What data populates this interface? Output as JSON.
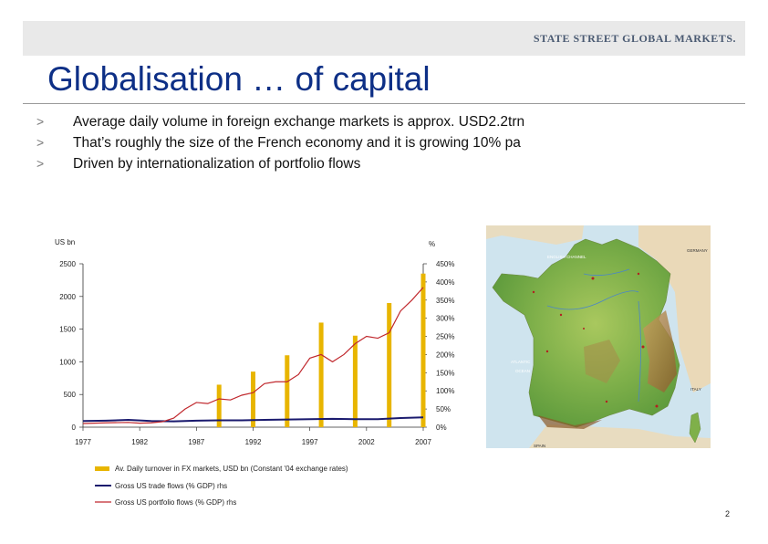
{
  "brand": "STATE STREET GLOBAL MARKETS.",
  "title": "Globalisation … of capital",
  "bullets": [
    "Average daily volume in foreign exchange markets is approx. USD2.2trn",
    "That’s roughly the size of the French economy and it is growing 10% pa",
    "Driven by internationalization of portfolio flows"
  ],
  "bullet_marker": ">",
  "page_number": "2",
  "map": {
    "labels": [
      "ENGLISH CHANNEL",
      "GERMANY",
      "ATLANTIC",
      "OCEAN",
      "ITALY",
      "SPAIN"
    ]
  },
  "chart_data": {
    "type": "bar",
    "title": "",
    "ylabel_left": "US bn",
    "ylabel_right": "%",
    "ylim_left": [
      0,
      2500
    ],
    "ylim_right": [
      0,
      450
    ],
    "left_ticks": [
      "2500",
      "2000",
      "1500",
      "1000",
      "500",
      "0"
    ],
    "right_ticks": [
      "450%",
      "400%",
      "350%",
      "300%",
      "250%",
      "200%",
      "150%",
      "100%",
      "50%",
      "0%"
    ],
    "x_ticks": [
      "1977",
      "1982",
      "1987",
      "1992",
      "1997",
      "2002",
      "2007"
    ],
    "x_range": [
      1977,
      2007
    ],
    "bars": {
      "name": "Av. Daily turnover in FX markets, USD bn (Constant '04 exchange rates)",
      "color": "#e8b500",
      "x": [
        1989,
        1992,
        1995,
        1998,
        2001,
        2004,
        2007
      ],
      "values": [
        650,
        850,
        1100,
        1600,
        1400,
        1900,
        2350
      ]
    },
    "lines": [
      {
        "name": "Gross US trade flows (% GDP) rhs",
        "color": "#1a1a6e",
        "axis": "right",
        "x": [
          1977,
          1979,
          1981,
          1983,
          1985,
          1987,
          1989,
          1991,
          1993,
          1995,
          1997,
          1999,
          2001,
          2003,
          2005,
          2007
        ],
        "values": [
          17,
          18,
          20,
          17,
          16,
          18,
          19,
          19,
          20,
          21,
          22,
          23,
          22,
          22,
          25,
          27
        ]
      },
      {
        "name": "Gross US portfolio flows (% GDP) rhs",
        "color": "#c0282d",
        "axis": "right",
        "x": [
          1977,
          1979,
          1981,
          1982,
          1983,
          1984,
          1985,
          1986,
          1987,
          1988,
          1989,
          1990,
          1991,
          1992,
          1993,
          1994,
          1995,
          1996,
          1997,
          1998,
          1999,
          2000,
          2001,
          2002,
          2003,
          2004,
          2005,
          2006,
          2007
        ],
        "values": [
          10,
          12,
          13,
          11,
          12,
          15,
          25,
          50,
          68,
          65,
          78,
          75,
          88,
          95,
          120,
          125,
          125,
          145,
          190,
          200,
          180,
          200,
          230,
          250,
          245,
          260,
          320,
          350,
          385
        ]
      }
    ]
  }
}
